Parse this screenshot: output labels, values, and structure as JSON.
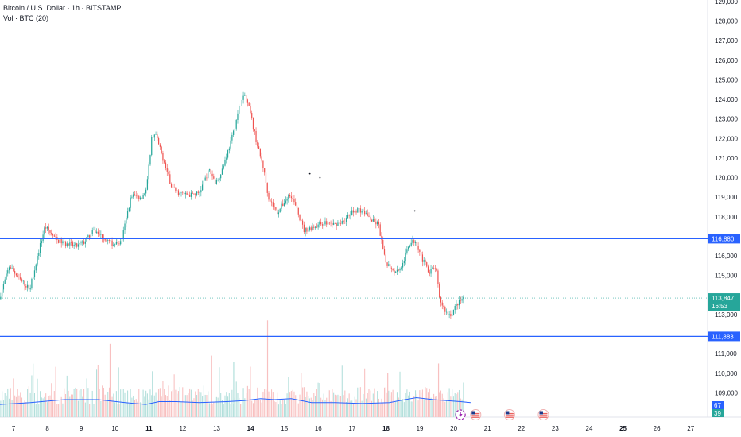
{
  "legend": {
    "title": "Bitcoin / U.S. Dollar · 1h · BITSTAMP",
    "volume": "Vol · BTC (20)"
  },
  "colors": {
    "up": "#26a69a",
    "down": "#ef5350",
    "up_vol": "#b2dfdb",
    "down_vol": "#f8c0c0",
    "level_line": "#2962ff",
    "vol_ma": "#2962ff",
    "price_line": "#26a69a"
  },
  "chart_data": {
    "type": "candlestick",
    "y_axis": {
      "min": 108000,
      "max": 129000,
      "ticks": [
        129000,
        128000,
        127000,
        126000,
        125000,
        124000,
        123000,
        122000,
        121000,
        120000,
        119000,
        118000,
        116000,
        115000,
        113000,
        111000,
        110000,
        109000
      ],
      "tick_labels": [
        "129,000",
        "128,000",
        "127,000",
        "126,000",
        "125,000",
        "124,000",
        "123,000",
        "122,000",
        "121,000",
        "120,000",
        "119,000",
        "118,000",
        "116,000",
        "115,000",
        "113,000",
        "111,000",
        "110,000",
        "109,000"
      ]
    },
    "x_axis": {
      "min_day": 6.6,
      "max_day": 27.5,
      "labels": [
        "7",
        "8",
        "9",
        "10",
        "11",
        "12",
        "13",
        "14",
        "15",
        "16",
        "17",
        "18",
        "19",
        "20",
        "21",
        "22",
        "23",
        "24",
        "25",
        "26",
        "27"
      ],
      "bold_labels": [
        "11",
        "14",
        "18",
        "25"
      ]
    },
    "horizontal_levels": [
      {
        "price": 116880,
        "label": "116,880"
      },
      {
        "price": 111883,
        "label": "111,883"
      }
    ],
    "current_price": {
      "price": 113847,
      "label": "113,847",
      "countdown": "16:53"
    },
    "volume_badges": [
      "67",
      "39"
    ],
    "price_path": [
      [
        6.6,
        113800
      ],
      [
        6.9,
        115500
      ],
      [
        7.2,
        114800
      ],
      [
        7.5,
        114300
      ],
      [
        7.8,
        116500
      ],
      [
        7.95,
        117500
      ],
      [
        8.3,
        116800
      ],
      [
        8.6,
        116600
      ],
      [
        8.9,
        116500
      ],
      [
        9.1,
        116700
      ],
      [
        9.4,
        117300
      ],
      [
        9.7,
        116900
      ],
      [
        9.95,
        116600
      ],
      [
        10.2,
        116700
      ],
      [
        10.3,
        117500
      ],
      [
        10.5,
        119100
      ],
      [
        10.8,
        119000
      ],
      [
        10.95,
        119400
      ],
      [
        11.1,
        122000
      ],
      [
        11.2,
        122300
      ],
      [
        11.5,
        120600
      ],
      [
        11.7,
        119500
      ],
      [
        11.9,
        119200
      ],
      [
        12.2,
        119100
      ],
      [
        12.5,
        119200
      ],
      [
        12.6,
        119600
      ],
      [
        12.8,
        120400
      ],
      [
        13.0,
        119700
      ],
      [
        13.2,
        120500
      ],
      [
        13.5,
        122200
      ],
      [
        13.7,
        123700
      ],
      [
        13.85,
        124200
      ],
      [
        14.0,
        123400
      ],
      [
        14.2,
        121800
      ],
      [
        14.4,
        120500
      ],
      [
        14.55,
        119000
      ],
      [
        14.8,
        118200
      ],
      [
        15.0,
        118700
      ],
      [
        15.2,
        119200
      ],
      [
        15.4,
        118300
      ],
      [
        15.6,
        117300
      ],
      [
        15.9,
        117500
      ],
      [
        16.2,
        117700
      ],
      [
        16.5,
        117600
      ],
      [
        16.8,
        117800
      ],
      [
        17.0,
        118200
      ],
      [
        17.2,
        118400
      ],
      [
        17.4,
        118200
      ],
      [
        17.6,
        117800
      ],
      [
        17.8,
        117600
      ],
      [
        18.0,
        115700
      ],
      [
        18.3,
        115200
      ],
      [
        18.5,
        115500
      ],
      [
        18.7,
        116600
      ],
      [
        18.9,
        116800
      ],
      [
        19.1,
        115800
      ],
      [
        19.3,
        115200
      ],
      [
        19.5,
        115400
      ],
      [
        19.6,
        113800
      ],
      [
        19.8,
        113100
      ],
      [
        19.95,
        113000
      ],
      [
        20.1,
        113500
      ],
      [
        20.3,
        113847
      ]
    ],
    "volume_ma_path": [
      [
        6.6,
        108400
      ],
      [
        7.5,
        108500
      ],
      [
        8.5,
        108650
      ],
      [
        9.5,
        108650
      ],
      [
        10.3,
        108500
      ],
      [
        10.9,
        108400
      ],
      [
        11.3,
        108550
      ],
      [
        11.8,
        108550
      ],
      [
        12.5,
        108500
      ],
      [
        13.3,
        108550
      ],
      [
        13.8,
        108600
      ],
      [
        14.3,
        108700
      ],
      [
        14.7,
        108650
      ],
      [
        15.2,
        108700
      ],
      [
        15.8,
        108500
      ],
      [
        16.5,
        108500
      ],
      [
        17.3,
        108450
      ],
      [
        18.1,
        108500
      ],
      [
        18.4,
        108600
      ],
      [
        18.9,
        108750
      ],
      [
        19.4,
        108650
      ],
      [
        19.8,
        108600
      ],
      [
        20.2,
        108550
      ],
      [
        20.5,
        108500
      ]
    ],
    "volume_spikes": [
      {
        "day": 9.85,
        "height_price": 111500,
        "up": false
      },
      {
        "day": 14.5,
        "height_price": 112700,
        "up": false
      },
      {
        "day": 12.85,
        "height_price": 110900,
        "up": false
      },
      {
        "day": 13.5,
        "height_price": 110600,
        "up": true
      },
      {
        "day": 19.55,
        "height_price": 110500,
        "up": false
      },
      {
        "day": 18.05,
        "height_price": 110000,
        "up": false
      },
      {
        "day": 10.1,
        "height_price": 110300,
        "up": true
      },
      {
        "day": 11.1,
        "height_price": 110100,
        "up": true
      }
    ],
    "event_markers": [
      {
        "day": 20.2,
        "type": "bolt"
      },
      {
        "day": 20.65,
        "type": "us-flag"
      },
      {
        "day": 21.65,
        "type": "us-flag"
      },
      {
        "day": 22.65,
        "type": "us-flag"
      }
    ],
    "stray_dots": [
      {
        "day": 15.75,
        "price": 120200
      },
      {
        "day": 16.05,
        "price": 120000
      },
      {
        "day": 18.85,
        "price": 118300
      }
    ]
  }
}
